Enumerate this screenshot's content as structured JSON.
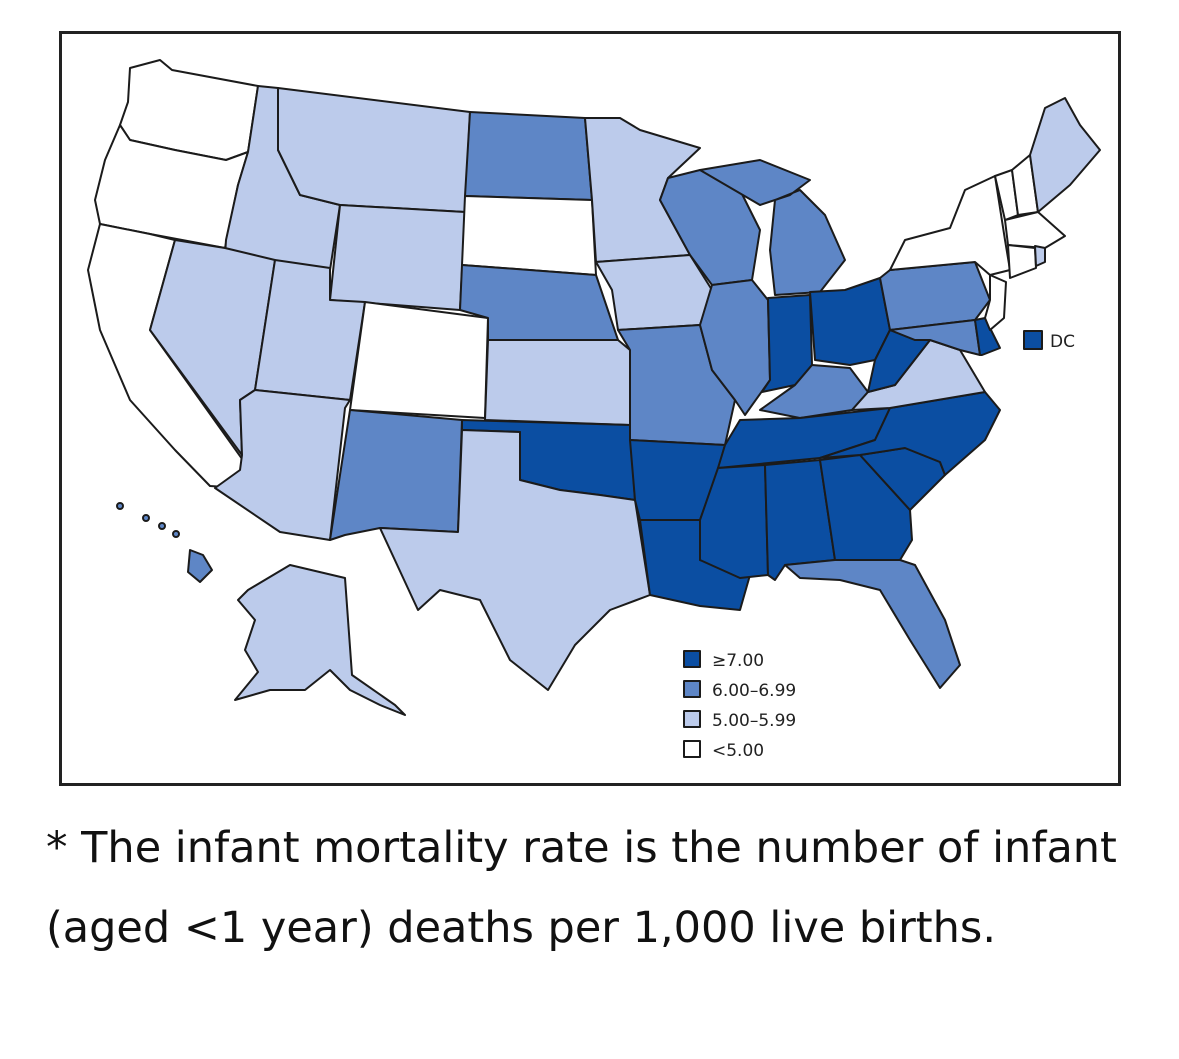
{
  "colors": {
    "ge7": "#0b4ea2",
    "r6_699": "#5e86c6",
    "r5_599": "#bccbeb",
    "lt5": "#ffffff"
  },
  "map": {
    "dc_label": "DC",
    "legend": [
      {
        "label": "≥7.00",
        "color_key": "ge7"
      },
      {
        "label": "6.00–6.99",
        "color_key": "r6_699"
      },
      {
        "label": "5.00–5.99",
        "color_key": "r5_599"
      },
      {
        "label": "<5.00",
        "color_key": "lt5"
      }
    ],
    "states": {
      "WA": "lt5",
      "OR": "lt5",
      "CA": "lt5",
      "CO": "lt5",
      "SD": "lt5",
      "NY": "lt5",
      "MA": "lt5",
      "CT": "lt5",
      "NJ": "lt5",
      "VT": "lt5",
      "NH": "lt5",
      "ID": "r5_599",
      "MT": "r5_599",
      "WY": "r5_599",
      "NV": "r5_599",
      "UT": "r5_599",
      "AZ": "r5_599",
      "TX": "r5_599",
      "KS": "r5_599",
      "MN": "r5_599",
      "IA": "r5_599",
      "VA": "r5_599",
      "ME": "r5_599",
      "AK": "r5_599",
      "RI": "r5_599",
      "ND": "r6_699",
      "NE": "r6_699",
      "NM": "r6_699",
      "MO": "r6_699",
      "WI": "r6_699",
      "MI": "r6_699",
      "IL": "r6_699",
      "KY": "r6_699",
      "PA": "r6_699",
      "MD": "r6_699",
      "FL": "r6_699",
      "HI": "r6_699",
      "OK": "ge7",
      "AR": "ge7",
      "LA": "ge7",
      "MS": "ge7",
      "AL": "ge7",
      "GA": "ge7",
      "SC": "ge7",
      "NC": "ge7",
      "TN": "ge7",
      "IN": "ge7",
      "OH": "ge7",
      "WV": "ge7",
      "DE": "ge7",
      "DC": "ge7"
    }
  },
  "caption": "* The infant mortality rate is the number of infant (aged <1 year) deaths per 1,000 live births."
}
